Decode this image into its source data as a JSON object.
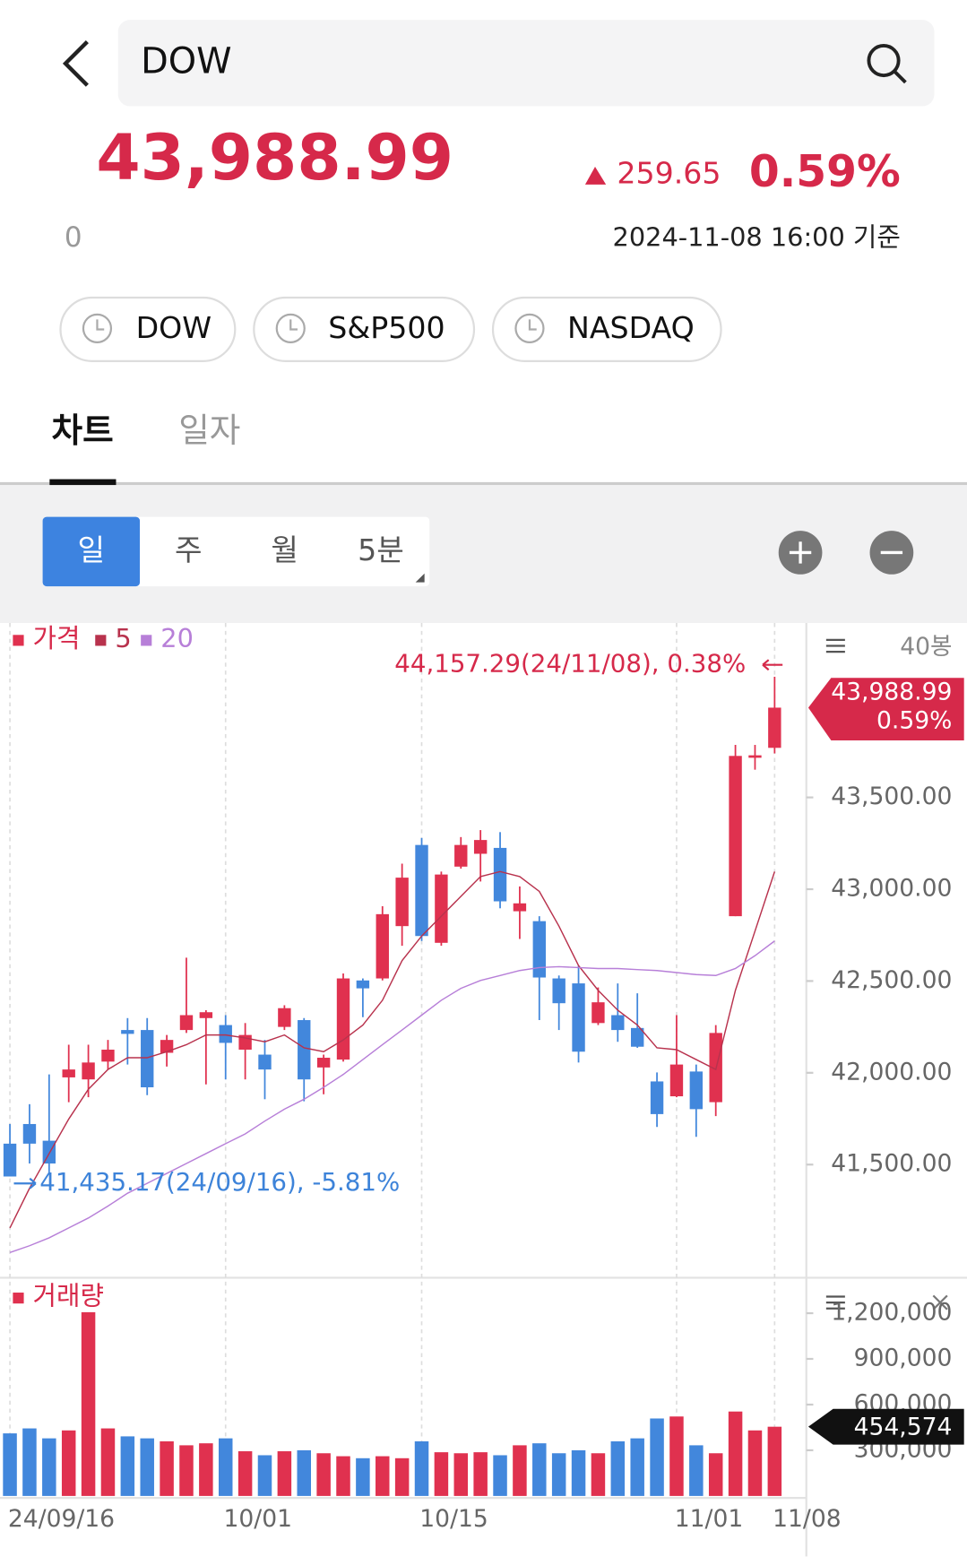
{
  "header": {
    "search": "DOW"
  },
  "quote": {
    "price": "43,988.99",
    "change": "259.65",
    "change_pct": "0.59%",
    "sub": "0",
    "timestamp": "2024-11-08 16:00 기준"
  },
  "indices": [
    "DOW",
    "S&P500",
    "NASDAQ"
  ],
  "tabs": [
    "차트",
    "일자"
  ],
  "periods": [
    "일",
    "주",
    "월",
    "5분"
  ],
  "chart_data": {
    "type": "candlestick",
    "price_label": "가격",
    "bar_count": "40봉",
    "up_color": "#e0314f",
    "down_color": "#4287dc",
    "open": [
      41614,
      41721,
      41630,
      41975,
      41964,
      42061,
      42233,
      42233,
      42109,
      42233,
      42298,
      42260,
      42126,
      42099,
      42250,
      42287,
      42029,
      42072,
      42503,
      42514,
      42799,
      43241,
      42708,
      43123,
      43193,
      43225,
      42880,
      42826,
      42514,
      42487,
      42271,
      42314,
      42244,
      41953,
      41872,
      42007,
      41840,
      42853,
      43716,
      43770
    ],
    "high": [
      41721,
      41829,
      41991,
      42153,
      42153,
      42179,
      42298,
      42298,
      42206,
      42627,
      42341,
      42314,
      42271,
      42179,
      42368,
      42298,
      42099,
      42541,
      42514,
      42907,
      43139,
      43279,
      43096,
      43284,
      43322,
      43311,
      43015,
      42853,
      42530,
      42584,
      42465,
      42487,
      42433,
      42002,
      42314,
      42045,
      42260,
      43786,
      43786,
      44157.29
    ],
    "low": [
      41435.17,
      41506,
      41452,
      41840,
      41867,
      42018,
      42045,
      41878,
      42034,
      42217,
      41937,
      41964,
      41964,
      41856,
      42233,
      41845,
      41883,
      42061,
      42303,
      42503,
      42692,
      42718,
      42692,
      43112,
      43042,
      42896,
      42729,
      42287,
      42233,
      42056,
      42260,
      42169,
      42136,
      41705,
      41867,
      41651,
      41764,
      42853,
      43651,
      43740
    ],
    "close": [
      41435.17,
      41614,
      41506,
      42018,
      42056,
      42126,
      42212,
      41921,
      42179,
      42314,
      42330,
      42163,
      42206,
      42018,
      42352,
      41964,
      42082,
      42514,
      42460,
      42864,
      43063,
      42745,
      43080,
      43241,
      43268,
      42934,
      42923,
      42519,
      42379,
      42115,
      42384,
      42233,
      42142,
      41775,
      42045,
      41802,
      42217,
      43726,
      43729.34,
      43988.99
    ],
    "series": [
      {
        "name": "5",
        "color": "#b8324d",
        "values": [
          41155,
          41371,
          41560,
          41748,
          41910,
          42018,
          42082,
          42082,
          42115,
          42153,
          42206,
          42206,
          42190,
          42169,
          42206,
          42136,
          42115,
          42179,
          42260,
          42395,
          42611,
          42745,
          42853,
          42961,
          43069,
          43096,
          43069,
          42988,
          42799,
          42584,
          42449,
          42341,
          42260,
          42136,
          42126,
          42072,
          42018,
          42449,
          42772,
          43096
        ]
      },
      {
        "name": "20",
        "color": "#b77fd8",
        "values": [
          41021,
          41058,
          41101,
          41155,
          41209,
          41274,
          41344,
          41398,
          41452,
          41506,
          41560,
          41614,
          41667,
          41737,
          41802,
          41856,
          41921,
          41991,
          42072,
          42153,
          42233,
          42314,
          42395,
          42460,
          42503,
          42530,
          42557,
          42573,
          42578,
          42573,
          42568,
          42568,
          42562,
          42557,
          42546,
          42535,
          42530,
          42568,
          42638,
          42718
        ]
      }
    ],
    "ylim": [
      40900,
      44450
    ],
    "yticks": [
      {
        "value": 41500,
        "label": "41,500.00"
      },
      {
        "value": 42000,
        "label": "42,000.00"
      },
      {
        "value": 42500,
        "label": "42,500.00"
      },
      {
        "value": 43000,
        "label": "43,000.00"
      },
      {
        "value": 43500,
        "label": "43,500.00"
      }
    ],
    "xticks": [
      {
        "value": 0,
        "label": "24/09/16"
      },
      {
        "value": 11,
        "label": "10/01"
      },
      {
        "value": 21,
        "label": "10/15"
      },
      {
        "value": 34,
        "label": "11/01"
      },
      {
        "value": 39,
        "label": "11/08"
      }
    ],
    "max_label": "44,157.29(24/11/08), 0.38%",
    "min_label": "41,435.17(24/09/16), -5.81%",
    "last_label": "43,988.99",
    "last_change": "0.59%",
    "volume": {
      "name": "거래량",
      "values": [
        410900,
        443500,
        378300,
        430400,
        1206600,
        443500,
        391300,
        378300,
        358700,
        332600,
        345700,
        378300,
        293500,
        267400,
        293500,
        300000,
        280400,
        260900,
        247800,
        260900,
        247800,
        358700,
        287000,
        280400,
        287000,
        267400,
        332600,
        345700,
        280400,
        300000,
        280400,
        358700,
        378300,
        508700,
        521800,
        332600,
        280400,
        554400,
        430400,
        454574
      ],
      "ylim": [
        0,
        1420000
      ],
      "yticks": [
        {
          "value": 300000,
          "label": "300,000"
        },
        {
          "value": 600000,
          "label": "600,000"
        },
        {
          "value": 900000,
          "label": "900,000"
        },
        {
          "value": 1200000,
          "label": "1,200,000"
        }
      ],
      "current_label": "454,574"
    }
  }
}
